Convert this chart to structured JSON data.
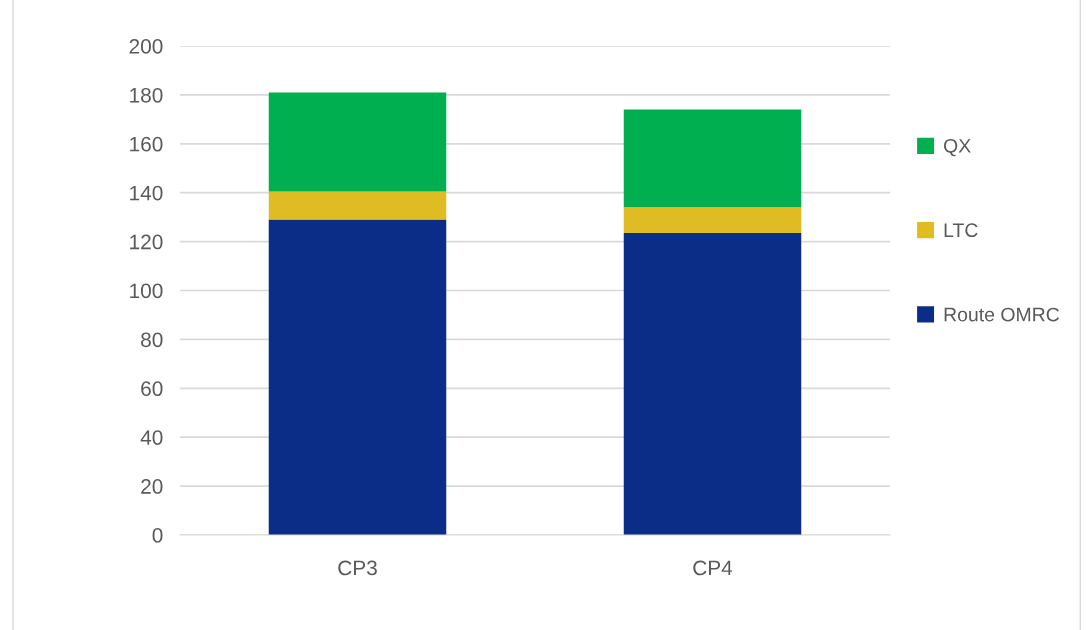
{
  "chart_data": {
    "type": "bar",
    "stacked": true,
    "categories": [
      "CP3",
      "CP4"
    ],
    "series": [
      {
        "name": "Route OMRC",
        "color": "#0b2d87",
        "values": [
          129,
          123.5
        ]
      },
      {
        "name": "LTC",
        "color": "#dfbb24",
        "values": [
          11.5,
          10.5
        ]
      },
      {
        "name": "QX",
        "color": "#00af50",
        "values": [
          40.5,
          40
        ]
      }
    ],
    "ylim": [
      0,
      200
    ],
    "yticks": [
      0,
      20,
      40,
      60,
      80,
      100,
      120,
      140,
      160,
      180,
      200
    ],
    "grid": "y",
    "legend": "right"
  }
}
